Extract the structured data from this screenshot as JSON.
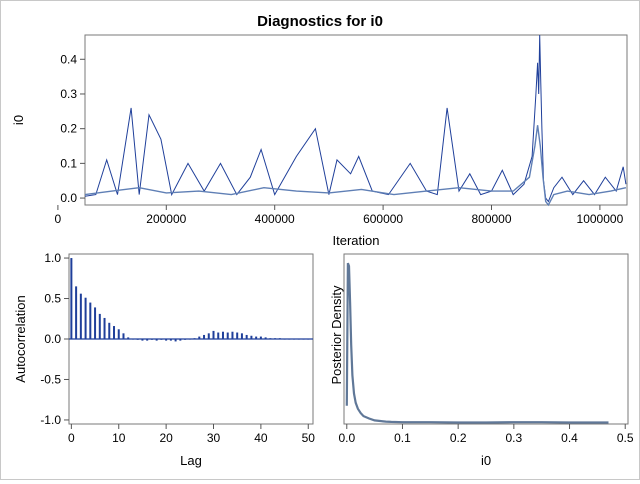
{
  "chart_data": [
    {
      "type": "line",
      "title": "Diagnostics for i0",
      "xlabel": "Iteration",
      "ylabel": "i0",
      "xlim": [
        50000,
        1050000
      ],
      "ylim": [
        -0.02,
        0.47
      ],
      "xticks": [
        0,
        200000,
        400000,
        600000,
        800000,
        1000000
      ],
      "xtick_labels": [
        "0",
        "200000",
        "400000",
        "600000",
        "800000",
        "1000000"
      ],
      "yticks": [
        0.0,
        0.1,
        0.2,
        0.3,
        0.4
      ],
      "ytick_labels": [
        "0.0",
        "0.1",
        "0.2",
        "0.3",
        "0.4"
      ],
      "series": [
        {
          "color": "#1f3f9a",
          "x": [
            50000,
            70000,
            90000,
            110000,
            135000,
            150000,
            168000,
            190000,
            210000,
            240000,
            270000,
            300000,
            330000,
            355000,
            375000,
            400000,
            440000,
            475000,
            500000,
            515000,
            540000,
            555000,
            580000,
            610000,
            650000,
            680000,
            700000,
            718000,
            740000,
            760000,
            780000,
            800000,
            820000,
            840000,
            860000,
            875000,
            882000,
            885000,
            887000,
            889000,
            891000,
            893000,
            896000,
            900000,
            905000,
            915000,
            930000,
            950000,
            970000,
            990000,
            1010000,
            1030000,
            1043000,
            1048000
          ],
          "y": [
            0.005,
            0.01,
            0.11,
            0.01,
            0.26,
            0.01,
            0.24,
            0.17,
            0.01,
            0.1,
            0.02,
            0.1,
            0.01,
            0.06,
            0.14,
            0.01,
            0.12,
            0.2,
            0.01,
            0.11,
            0.07,
            0.12,
            0.02,
            0.01,
            0.1,
            0.02,
            0.01,
            0.26,
            0.02,
            0.07,
            0.01,
            0.02,
            0.08,
            0.01,
            0.04,
            0.12,
            0.3,
            0.39,
            0.3,
            0.47,
            0.33,
            0.2,
            0.05,
            0.0,
            -0.01,
            0.03,
            0.06,
            0.01,
            0.05,
            0.01,
            0.06,
            0.02,
            0.09,
            0.04
          ]
        },
        {
          "color": "#5f7fb5",
          "x": [
            50000,
            100000,
            150000,
            200000,
            260000,
            320000,
            380000,
            440000,
            500000,
            560000,
            620000,
            680000,
            740000,
            800000,
            840000,
            870000,
            880000,
            885000,
            890000,
            895000,
            900000,
            905000,
            915000,
            940000,
            980000,
            1020000,
            1048000
          ],
          "y": [
            0.01,
            0.02,
            0.03,
            0.015,
            0.02,
            0.01,
            0.03,
            0.02,
            0.015,
            0.025,
            0.01,
            0.02,
            0.03,
            0.02,
            0.02,
            0.06,
            0.15,
            0.21,
            0.15,
            0.06,
            -0.01,
            -0.02,
            0.01,
            0.02,
            0.01,
            0.02,
            0.03
          ]
        }
      ]
    },
    {
      "type": "bar",
      "xlabel": "Lag",
      "ylabel": "Autocorrelation",
      "xlim": [
        -0.5,
        51
      ],
      "ylim": [
        -1.05,
        1.05
      ],
      "xticks": [
        0,
        10,
        20,
        30,
        40,
        50
      ],
      "xtick_labels": [
        "0",
        "10",
        "20",
        "30",
        "40",
        "50"
      ],
      "yticks": [
        -1.0,
        -0.5,
        0.0,
        0.5,
        1.0
      ],
      "ytick_labels": [
        "-1.0",
        "-0.5",
        "0.0",
        "0.5",
        "1.0"
      ],
      "lags": [
        0,
        1,
        2,
        3,
        4,
        5,
        6,
        7,
        8,
        9,
        10,
        11,
        12,
        13,
        14,
        15,
        16,
        17,
        18,
        19,
        20,
        21,
        22,
        23,
        24,
        25,
        26,
        27,
        28,
        29,
        30,
        31,
        32,
        33,
        34,
        35,
        36,
        37,
        38,
        39,
        40,
        41,
        42,
        43,
        44,
        45,
        46,
        47,
        48,
        49,
        50
      ],
      "values": [
        1.0,
        0.65,
        0.56,
        0.51,
        0.45,
        0.39,
        0.31,
        0.26,
        0.2,
        0.16,
        0.12,
        0.07,
        0.02,
        0.0,
        -0.01,
        -0.02,
        -0.02,
        -0.01,
        -0.02,
        -0.01,
        -0.02,
        -0.02,
        -0.03,
        -0.02,
        -0.01,
        0.0,
        0.01,
        0.03,
        0.05,
        0.07,
        0.1,
        0.08,
        0.09,
        0.08,
        0.09,
        0.08,
        0.07,
        0.05,
        0.04,
        0.03,
        0.03,
        0.02,
        0.01,
        0.01,
        0.01,
        0.0,
        0.0,
        0.0,
        0.0,
        0.0,
        0.0
      ],
      "color": "#1f3f9a"
    },
    {
      "type": "line",
      "xlabel": "i0",
      "ylabel": "Posterior Density",
      "xlim": [
        -0.005,
        0.505
      ],
      "ylim": [
        0,
        28
      ],
      "xticks": [
        0.0,
        0.1,
        0.2,
        0.3,
        0.4,
        0.5
      ],
      "xtick_labels": [
        "0.0",
        "0.1",
        "0.2",
        "0.3",
        "0.4",
        "0.5"
      ],
      "x": [
        0.0,
        0.002,
        0.004,
        0.006,
        0.008,
        0.01,
        0.013,
        0.016,
        0.02,
        0.025,
        0.03,
        0.04,
        0.05,
        0.06,
        0.07,
        0.08,
        0.1,
        0.12,
        0.15,
        0.2,
        0.25,
        0.3,
        0.35,
        0.4,
        0.45,
        0.47
      ],
      "y": [
        3.0,
        26.5,
        26.0,
        20.0,
        13.0,
        8.0,
        5.0,
        3.5,
        2.5,
        1.8,
        1.3,
        0.9,
        0.6,
        0.5,
        0.4,
        0.35,
        0.3,
        0.3,
        0.3,
        0.25,
        0.25,
        0.3,
        0.3,
        0.25,
        0.25,
        0.25
      ],
      "color": "#607898"
    }
  ]
}
